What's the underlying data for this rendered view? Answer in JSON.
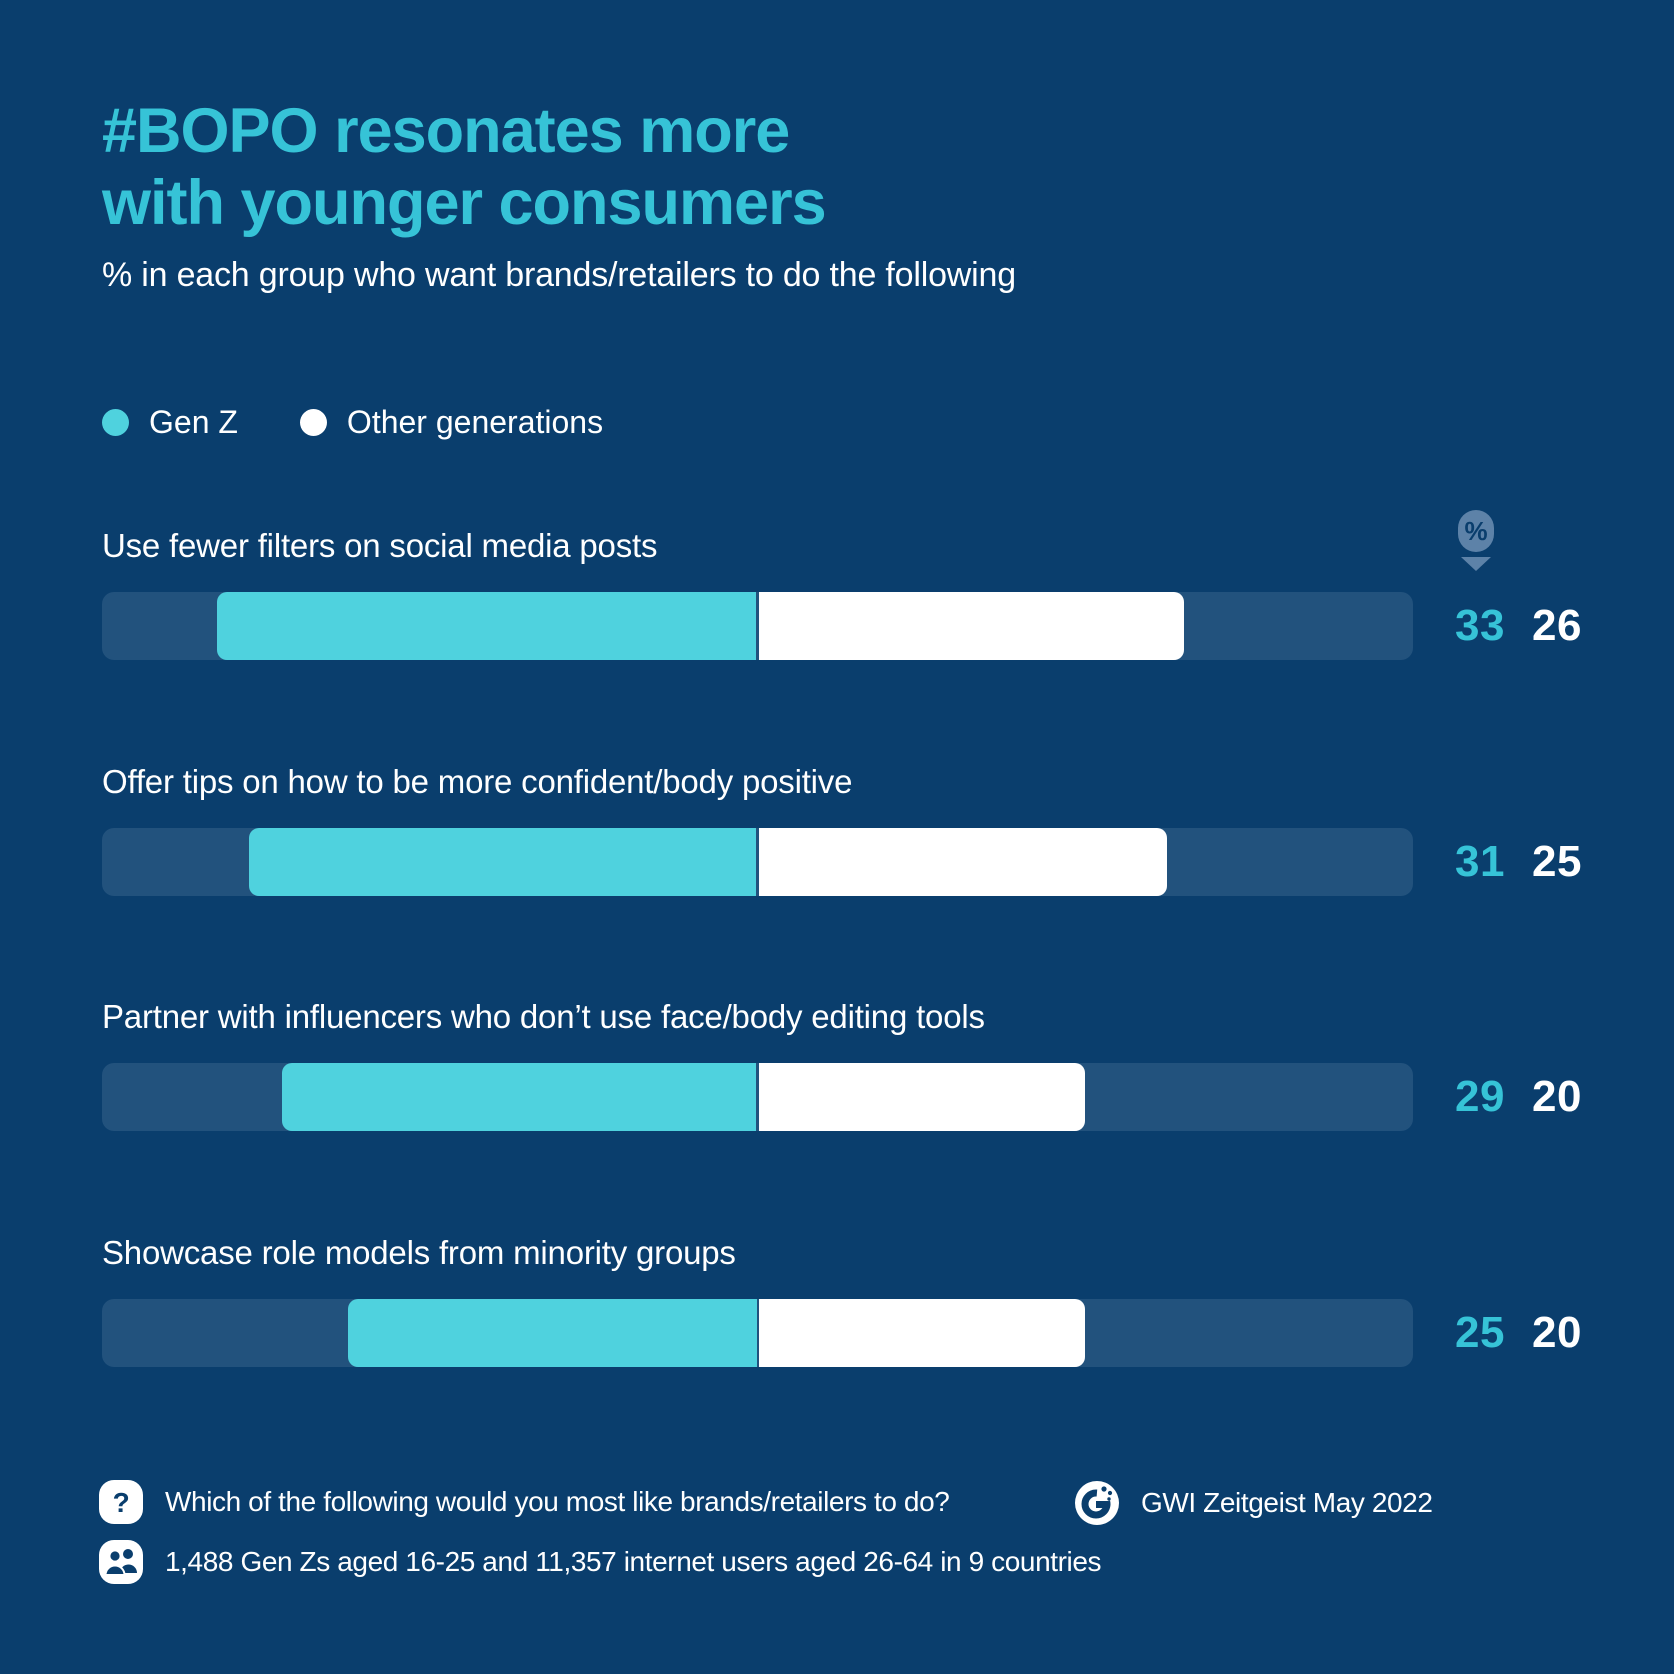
{
  "title": {
    "line1": "#BOPO resonates more",
    "line2": "with younger consumers"
  },
  "subtitle": "% in each group who want brands/retailers to do the following",
  "legend": {
    "items": [
      {
        "label": "Gen Z",
        "color": "#4FD2DE"
      },
      {
        "label": "Other generations",
        "color": "#FFFFFF"
      }
    ]
  },
  "pin": {
    "label": "%"
  },
  "chart_data": {
    "type": "bar",
    "orientation": "horizontal-diverging",
    "title": "#BOPO resonates more with younger consumers",
    "subtitle": "% in each group who want brands/retailers to do the following",
    "unit": "%",
    "axis_range_each_side": [
      0,
      40
    ],
    "grid": false,
    "legend_position": "top-left",
    "categories": [
      "Use fewer filters on social media posts",
      "Offer tips on how to be more confident/body positive",
      "Partner with influencers who don’t use face/body editing tools",
      "Showcase role models from minority groups"
    ],
    "series": [
      {
        "name": "Gen Z",
        "color": "#4FD2DE",
        "values": [
          33,
          31,
          29,
          25
        ]
      },
      {
        "name": "Other generations",
        "color": "#FFFFFF",
        "values": [
          26,
          25,
          20,
          20
        ]
      }
    ]
  },
  "footer": {
    "question": "Which of the following would you most like brands/retailers to do?",
    "source": "GWI Zeitgeist May 2022",
    "base": "1,488 Gen Zs aged 16-25 and 11,357 internet users aged 26-64 in 9 countries"
  },
  "colors": {
    "background": "#0A3E6D",
    "track": "#22527D",
    "accent_teal_text": "#36C3D7",
    "bar_teal": "#4FD2DE",
    "bar_white": "#FFFFFF",
    "pin": "#5D82A8"
  }
}
